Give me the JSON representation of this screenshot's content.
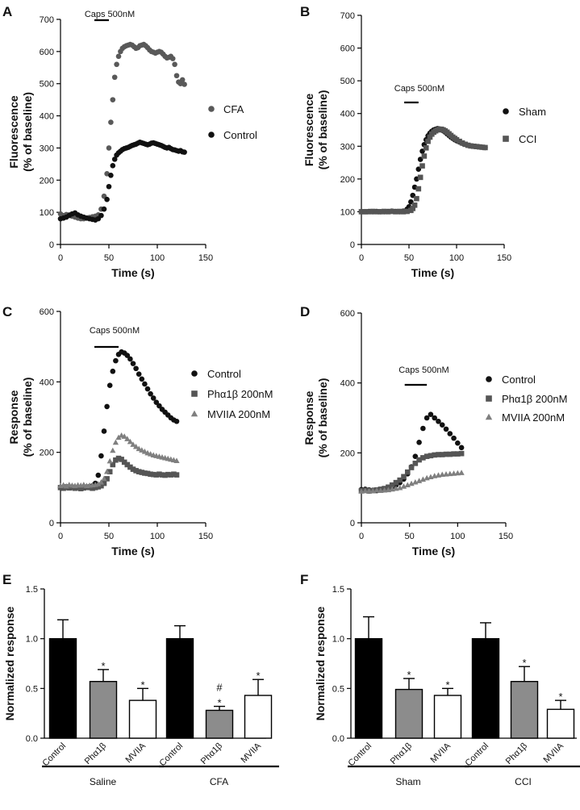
{
  "chart_data": [
    {
      "panel": "A",
      "type": "scatter",
      "xlabel": "Time (s)",
      "ylabel": [
        "Fluorescence",
        "(% of baseline)"
      ],
      "xlim": [
        0,
        150
      ],
      "ylim": [
        0,
        700
      ],
      "xticks": [
        0,
        50,
        100,
        150
      ],
      "yticks": [
        0,
        100,
        200,
        300,
        400,
        500,
        600,
        700
      ],
      "annotation": "Caps 500nM",
      "stim": [
        35,
        50
      ],
      "series": [
        {
          "name": "CFA",
          "marker": "circle",
          "color": "#595959",
          "x": [
            0,
            3,
            6,
            9,
            12,
            15,
            18,
            21,
            24,
            27,
            30,
            33,
            36,
            39,
            42,
            45,
            48,
            50,
            52,
            54,
            56,
            58,
            60,
            62,
            64,
            66,
            68,
            70,
            72,
            74,
            76,
            78,
            80,
            82,
            84,
            86,
            88,
            90,
            92,
            94,
            96,
            98,
            100,
            102,
            104,
            106,
            108,
            110,
            112,
            114,
            116,
            118,
            120,
            122,
            124,
            126,
            128
          ],
          "y": [
            95,
            90,
            93,
            92,
            88,
            85,
            82,
            80,
            80,
            82,
            84,
            86,
            88,
            92,
            110,
            150,
            220,
            300,
            380,
            450,
            520,
            560,
            585,
            600,
            610,
            615,
            618,
            620,
            622,
            620,
            615,
            610,
            612,
            618,
            620,
            622,
            618,
            612,
            605,
            600,
            598,
            595,
            598,
            600,
            598,
            592,
            585,
            580,
            582,
            585,
            578,
            560,
            525,
            505,
            500,
            512,
            498
          ]
        },
        {
          "name": "Control",
          "marker": "circle",
          "color": "#111111",
          "x": [
            0,
            3,
            6,
            9,
            12,
            15,
            18,
            21,
            24,
            27,
            30,
            33,
            36,
            39,
            42,
            45,
            48,
            50,
            52,
            54,
            56,
            58,
            60,
            62,
            64,
            66,
            68,
            70,
            72,
            74,
            76,
            78,
            80,
            82,
            84,
            86,
            88,
            90,
            92,
            94,
            96,
            98,
            100,
            102,
            104,
            106,
            108,
            110,
            112,
            114,
            116,
            118,
            120,
            122,
            124,
            126,
            128
          ],
          "y": [
            80,
            82,
            85,
            90,
            95,
            98,
            92,
            88,
            85,
            82,
            80,
            78,
            76,
            80,
            90,
            110,
            140,
            180,
            215,
            245,
            265,
            278,
            285,
            290,
            295,
            298,
            300,
            302,
            305,
            308,
            310,
            312,
            315,
            318,
            316,
            314,
            312,
            310,
            312,
            315,
            316,
            314,
            312,
            310,
            308,
            305,
            302,
            300,
            302,
            298,
            295,
            294,
            292,
            290,
            292,
            288,
            287
          ]
        }
      ],
      "legend": [
        "CFA",
        "Control"
      ]
    },
    {
      "panel": "B",
      "type": "scatter",
      "xlabel": "Time (s)",
      "ylabel": [
        "Fluorescence",
        "(% of baseline)"
      ],
      "xlim": [
        0,
        150
      ],
      "ylim": [
        0,
        700
      ],
      "xticks": [
        0,
        50,
        100,
        150
      ],
      "yticks": [
        0,
        100,
        200,
        300,
        400,
        500,
        600,
        700
      ],
      "annotation": "Caps 500nM",
      "stim": [
        45,
        60
      ],
      "series": [
        {
          "name": "Sham",
          "marker": "circle",
          "color": "#111111",
          "x": [
            0,
            4,
            8,
            12,
            16,
            20,
            24,
            28,
            32,
            36,
            40,
            44,
            48,
            50,
            52,
            54,
            56,
            58,
            60,
            62,
            64,
            66,
            68,
            70,
            72,
            74,
            76,
            78,
            80,
            82,
            84,
            86,
            88,
            90,
            92,
            94,
            96,
            98,
            100,
            103,
            106,
            109,
            112,
            115,
            118,
            121,
            124,
            127,
            130
          ],
          "y": [
            100,
            100,
            101,
            100,
            101,
            100,
            100,
            101,
            102,
            101,
            100,
            102,
            108,
            115,
            130,
            150,
            175,
            200,
            230,
            260,
            285,
            305,
            320,
            332,
            340,
            346,
            350,
            352,
            354,
            353,
            350,
            347,
            343,
            338,
            333,
            328,
            324,
            320,
            317,
            313,
            309,
            306,
            303,
            301,
            300,
            299,
            298,
            297,
            296
          ]
        },
        {
          "name": "CCI",
          "marker": "square",
          "color": "#555555",
          "x": [
            0,
            4,
            8,
            12,
            16,
            20,
            24,
            28,
            32,
            36,
            40,
            44,
            48,
            52,
            54,
            56,
            58,
            60,
            62,
            64,
            66,
            68,
            70,
            72,
            74,
            76,
            78,
            80,
            82,
            84,
            86,
            88,
            90,
            92,
            94,
            96,
            98,
            100,
            103,
            106,
            109,
            112,
            115,
            118,
            121,
            124,
            127,
            130
          ],
          "y": [
            100,
            100,
            100,
            101,
            100,
            100,
            101,
            100,
            101,
            100,
            101,
            100,
            101,
            104,
            110,
            120,
            140,
            170,
            205,
            240,
            270,
            295,
            315,
            328,
            337,
            343,
            347,
            350,
            352,
            352,
            350,
            347,
            343,
            338,
            333,
            328,
            324,
            320,
            315,
            310,
            306,
            303,
            301,
            300,
            299,
            298,
            297,
            296
          ]
        }
      ],
      "legend": [
        "Sham",
        "CCI"
      ]
    },
    {
      "panel": "C",
      "type": "scatter",
      "xlabel": "Time (s)",
      "ylabel": [
        "Response",
        "(% of baseline)"
      ],
      "xlim": [
        0,
        150
      ],
      "ylim": [
        0,
        600
      ],
      "xticks": [
        0,
        50,
        100,
        150
      ],
      "yticks": [
        0,
        200,
        400,
        600
      ],
      "annotation": "Caps 500nM",
      "stim": [
        35,
        60
      ],
      "series": [
        {
          "name": "Control",
          "marker": "circle",
          "color": "#111111",
          "x": [
            0,
            3,
            6,
            9,
            12,
            15,
            18,
            21,
            24,
            27,
            30,
            33,
            36,
            39,
            42,
            45,
            48,
            51,
            54,
            57,
            60,
            63,
            66,
            69,
            72,
            75,
            78,
            81,
            84,
            87,
            90,
            93,
            96,
            99,
            102,
            105,
            108,
            111,
            114,
            117,
            120
          ],
          "y": [
            100,
            100,
            101,
            100,
            101,
            100,
            100,
            101,
            100,
            102,
            103,
            105,
            112,
            135,
            190,
            260,
            330,
            390,
            430,
            460,
            478,
            485,
            482,
            475,
            465,
            452,
            438,
            422,
            408,
            394,
            380,
            366,
            354,
            342,
            332,
            322,
            314,
            306,
            298,
            292,
            288
          ]
        },
        {
          "name": "Phα1β 200nM",
          "marker": "square",
          "color": "#555555",
          "x": [
            0,
            3,
            6,
            9,
            12,
            15,
            18,
            21,
            24,
            27,
            30,
            33,
            36,
            39,
            42,
            45,
            48,
            51,
            54,
            57,
            60,
            63,
            66,
            69,
            72,
            75,
            78,
            81,
            84,
            87,
            90,
            93,
            96,
            99,
            102,
            105,
            108,
            111,
            114,
            117,
            120
          ],
          "y": [
            100,
            98,
            102,
            99,
            101,
            98,
            100,
            97,
            99,
            101,
            100,
            98,
            100,
            102,
            105,
            112,
            125,
            145,
            165,
            178,
            183,
            180,
            172,
            165,
            158,
            152,
            148,
            145,
            143,
            141,
            140,
            138,
            137,
            136,
            138,
            136,
            135,
            137,
            136,
            138,
            136
          ]
        },
        {
          "name": "MVIIA 200nM",
          "marker": "triangle",
          "color": "#7f7f7f",
          "x": [
            0,
            3,
            6,
            9,
            12,
            15,
            18,
            21,
            24,
            27,
            30,
            33,
            36,
            39,
            42,
            45,
            48,
            51,
            54,
            57,
            60,
            63,
            66,
            69,
            72,
            75,
            78,
            81,
            84,
            87,
            90,
            93,
            96,
            99,
            102,
            105,
            108,
            111,
            114,
            117,
            120
          ],
          "y": [
            105,
            107,
            104,
            108,
            106,
            105,
            107,
            106,
            108,
            105,
            106,
            107,
            108,
            110,
            115,
            125,
            145,
            175,
            205,
            228,
            242,
            248,
            245,
            238,
            230,
            222,
            216,
            210,
            206,
            202,
            198,
            195,
            192,
            190,
            188,
            186,
            184,
            182,
            180,
            178,
            176
          ]
        }
      ],
      "legend": [
        "Control",
        "Phα1β 200nM",
        "MVIIA 200nM"
      ]
    },
    {
      "panel": "D",
      "type": "scatter",
      "xlabel": "Time (s)",
      "ylabel": [
        "Response",
        "(% of baseline)"
      ],
      "xlim": [
        0,
        150
      ],
      "ylim": [
        0,
        600
      ],
      "xticks": [
        0,
        50,
        100,
        150
      ],
      "yticks": [
        0,
        200,
        400,
        600
      ],
      "annotation": "Caps 500nM",
      "stim": [
        45,
        68
      ],
      "series": [
        {
          "name": "Control",
          "marker": "circle",
          "color": "#111111",
          "x": [
            0,
            4,
            8,
            12,
            16,
            20,
            24,
            28,
            32,
            36,
            40,
            44,
            48,
            52,
            56,
            60,
            64,
            68,
            72,
            76,
            80,
            84,
            88,
            92,
            96,
            100,
            104
          ],
          "y": [
            95,
            96,
            94,
            93,
            92,
            95,
            97,
            100,
            103,
            108,
            115,
            125,
            140,
            160,
            190,
            230,
            270,
            300,
            310,
            300,
            290,
            280,
            268,
            255,
            242,
            228,
            215
          ]
        },
        {
          "name": "Phα1β 200nM",
          "marker": "square",
          "color": "#555555",
          "x": [
            0,
            4,
            8,
            12,
            16,
            20,
            24,
            28,
            32,
            36,
            40,
            44,
            48,
            52,
            56,
            60,
            64,
            68,
            72,
            76,
            80,
            84,
            88,
            92,
            96,
            100,
            104
          ],
          "y": [
            92,
            93,
            91,
            92,
            94,
            96,
            98,
            102,
            108,
            115,
            122,
            132,
            145,
            158,
            170,
            180,
            186,
            190,
            192,
            194,
            195,
            195,
            196,
            196,
            197,
            197,
            198
          ]
        },
        {
          "name": "MVIIA 200nM",
          "marker": "triangle",
          "color": "#7f7f7f",
          "x": [
            0,
            4,
            8,
            12,
            16,
            20,
            24,
            28,
            32,
            36,
            40,
            44,
            48,
            52,
            56,
            60,
            64,
            68,
            72,
            76,
            80,
            84,
            88,
            92,
            96,
            100,
            104
          ],
          "y": [
            90,
            91,
            92,
            91,
            93,
            92,
            93,
            94,
            96,
            98,
            100,
            104,
            108,
            112,
            116,
            120,
            124,
            128,
            131,
            134,
            136,
            138,
            139,
            140,
            141,
            142,
            143
          ]
        }
      ],
      "legend": [
        "Control",
        "Phα1β 200nM",
        "MVIIA 200nM"
      ]
    },
    {
      "panel": "E",
      "type": "bar",
      "ylabel": "Normalized response",
      "ylim": [
        0,
        1.5
      ],
      "yticks": [
        0.0,
        0.5,
        1.0,
        1.5
      ],
      "categories": [
        "Control",
        "Phα1β",
        "MVIIA",
        "Control",
        "Phα1β",
        "MVIIA"
      ],
      "values": [
        1.0,
        0.57,
        0.38,
        1.0,
        0.28,
        0.43
      ],
      "errors": [
        0.19,
        0.12,
        0.12,
        0.13,
        0.04,
        0.16
      ],
      "fills": [
        "#000000",
        "#8c8c8c",
        "#ffffff",
        "#000000",
        "#8c8c8c",
        "#ffffff"
      ],
      "annotations": [
        "",
        "*",
        "*",
        "",
        "#\n*",
        "*"
      ],
      "groups": [
        {
          "label": "Saline",
          "span": [
            0,
            2
          ]
        },
        {
          "label": "CFA",
          "span": [
            3,
            5
          ]
        }
      ]
    },
    {
      "panel": "F",
      "type": "bar",
      "ylabel": "Normalized response",
      "ylim": [
        0,
        1.5
      ],
      "yticks": [
        0.0,
        0.5,
        1.0,
        1.5
      ],
      "categories": [
        "Control",
        "Phα1β",
        "MVIIA",
        "Control",
        "Phα1β",
        "MVIIA"
      ],
      "values": [
        1.0,
        0.49,
        0.43,
        1.0,
        0.57,
        0.29
      ],
      "errors": [
        0.22,
        0.11,
        0.07,
        0.16,
        0.15,
        0.09
      ],
      "fills": [
        "#000000",
        "#8c8c8c",
        "#ffffff",
        "#000000",
        "#8c8c8c",
        "#ffffff"
      ],
      "annotations": [
        "",
        "*",
        "*",
        "",
        "*",
        "*"
      ],
      "groups": [
        {
          "label": "Sham",
          "span": [
            0,
            2
          ]
        },
        {
          "label": "CCI",
          "span": [
            3,
            5
          ]
        }
      ]
    }
  ]
}
